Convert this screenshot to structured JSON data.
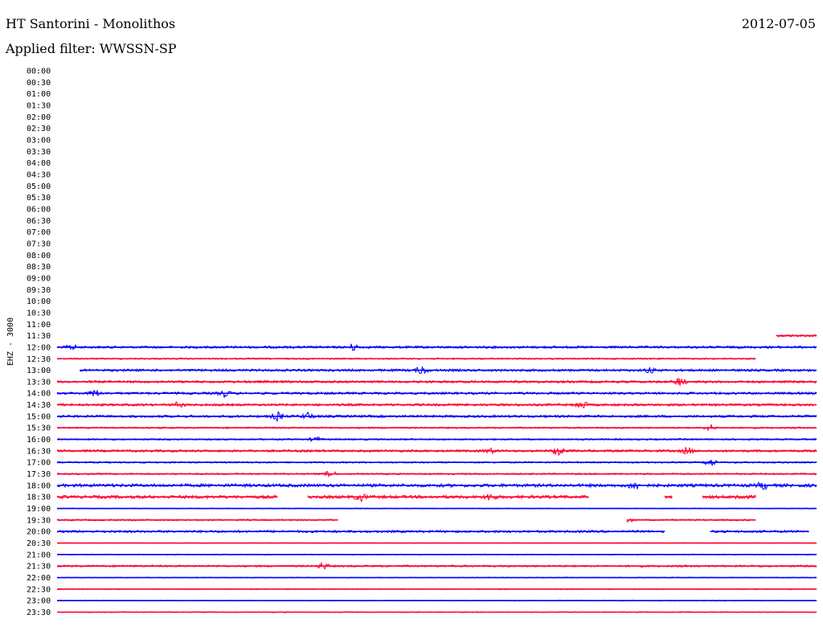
{
  "header": {
    "title": "HT Santorini - Monolithos",
    "date": "2012-07-05",
    "filter": "Applied filter: WWSSN-SP"
  },
  "chart_data": {
    "type": "line",
    "title": "HT Santorini - Monolithos",
    "subtitle": "Applied filter: WWSSN-SP",
    "ylabel": "EHZ - 3000",
    "tick_labels": [
      "00:00",
      "00:30",
      "01:00",
      "01:30",
      "02:00",
      "02:30",
      "03:00",
      "03:30",
      "04:00",
      "04:30",
      "05:00",
      "05:30",
      "06:00",
      "06:30",
      "07:00",
      "07:30",
      "08:00",
      "08:30",
      "09:00",
      "09:30",
      "10:00",
      "10:30",
      "11:00",
      "11:30",
      "12:00",
      "12:30",
      "13:00",
      "13:30",
      "14:00",
      "14:30",
      "15:00",
      "15:30",
      "16:00",
      "16:30",
      "17:00",
      "17:30",
      "18:00",
      "18:30",
      "19:00",
      "19:30",
      "20:00",
      "20:30",
      "21:00",
      "21:30",
      "22:00",
      "22:30",
      "23:00",
      "23:30"
    ],
    "trace_colors": [
      "#0000ff",
      "#ff0033"
    ],
    "rows": [
      {
        "label": "11:30",
        "color": "#ff0033",
        "segments": [
          [
            0.947,
            1.0
          ]
        ],
        "events": [],
        "amp": 1.5
      },
      {
        "label": "12:00",
        "color": "#0000ff",
        "segments": [
          [
            0.0,
            1.0
          ]
        ],
        "events": [
          [
            0.02,
            3
          ],
          [
            0.39,
            4
          ]
        ],
        "amp": 1.5
      },
      {
        "label": "12:30",
        "color": "#ff0033",
        "segments": [
          [
            0.0,
            0.92
          ]
        ],
        "events": [],
        "amp": 1.0
      },
      {
        "label": "13:00",
        "color": "#0000ff",
        "segments": [
          [
            0.03,
            1.0
          ]
        ],
        "events": [
          [
            0.48,
            5
          ],
          [
            0.78,
            3
          ]
        ],
        "amp": 1.5
      },
      {
        "label": "13:30",
        "color": "#ff0033",
        "segments": [
          [
            0.0,
            1.0
          ]
        ],
        "events": [
          [
            0.82,
            5
          ]
        ],
        "amp": 1.5
      },
      {
        "label": "14:00",
        "color": "#0000ff",
        "segments": [
          [
            0.0,
            1.0
          ]
        ],
        "events": [
          [
            0.05,
            4
          ],
          [
            0.22,
            4
          ]
        ],
        "amp": 1.5
      },
      {
        "label": "14:30",
        "color": "#ff0033",
        "segments": [
          [
            0.0,
            1.0
          ]
        ],
        "events": [
          [
            0.16,
            3
          ],
          [
            0.69,
            5
          ]
        ],
        "amp": 1.5
      },
      {
        "label": "15:00",
        "color": "#0000ff",
        "segments": [
          [
            0.0,
            1.0
          ]
        ],
        "events": [
          [
            0.29,
            5
          ],
          [
            0.33,
            4
          ]
        ],
        "amp": 1.5
      },
      {
        "label": "15:30",
        "color": "#ff0033",
        "segments": [
          [
            0.0,
            1.0
          ]
        ],
        "events": [
          [
            0.86,
            4
          ]
        ],
        "amp": 1.0
      },
      {
        "label": "16:00",
        "color": "#0000ff",
        "segments": [
          [
            0.0,
            1.0
          ]
        ],
        "events": [
          [
            0.34,
            3
          ]
        ],
        "amp": 1.0
      },
      {
        "label": "16:30",
        "color": "#ff0033",
        "segments": [
          [
            0.0,
            1.0
          ]
        ],
        "events": [
          [
            0.57,
            3
          ],
          [
            0.66,
            6
          ],
          [
            0.83,
            4
          ]
        ],
        "amp": 1.5
      },
      {
        "label": "17:00",
        "color": "#0000ff",
        "segments": [
          [
            0.0,
            1.0
          ]
        ],
        "events": [
          [
            0.86,
            5
          ]
        ],
        "amp": 1.0
      },
      {
        "label": "17:30",
        "color": "#ff0033",
        "segments": [
          [
            0.0,
            1.0
          ]
        ],
        "events": [
          [
            0.36,
            4
          ]
        ],
        "amp": 1.0
      },
      {
        "label": "18:00",
        "color": "#0000ff",
        "segments": [
          [
            0.0,
            1.0
          ]
        ],
        "events": [
          [
            0.76,
            5
          ],
          [
            0.93,
            4
          ]
        ],
        "amp": 2.0
      },
      {
        "label": "18:30",
        "color": "#ff0033",
        "segments": [
          [
            0.0,
            0.29
          ],
          [
            0.33,
            0.7
          ],
          [
            0.8,
            0.81
          ],
          [
            0.85,
            0.92
          ]
        ],
        "events": [
          [
            0.4,
            4
          ],
          [
            0.57,
            4
          ],
          [
            0.9,
            3
          ]
        ],
        "amp": 2.0
      },
      {
        "label": "19:00",
        "color": "#0000ff",
        "segments": [
          [
            0.0,
            1.0
          ]
        ],
        "events": [],
        "amp": 0.5
      },
      {
        "label": "19:30",
        "color": "#ff0033",
        "segments": [
          [
            0.0,
            0.37
          ],
          [
            0.75,
            0.92
          ]
        ],
        "events": [
          [
            0.75,
            3
          ]
        ],
        "amp": 1.0
      },
      {
        "label": "20:00",
        "color": "#0000ff",
        "segments": [
          [
            0.0,
            0.8
          ],
          [
            0.86,
            0.99
          ]
        ],
        "events": [],
        "amp": 1.5
      },
      {
        "label": "20:30",
        "color": "#ff0033",
        "segments": [
          [
            0.0,
            1.0
          ]
        ],
        "events": [],
        "amp": 0.5
      },
      {
        "label": "21:00",
        "color": "#0000ff",
        "segments": [
          [
            0.0,
            1.0
          ]
        ],
        "events": [],
        "amp": 0.6
      },
      {
        "label": "21:30",
        "color": "#ff0033",
        "segments": [
          [
            0.0,
            1.0
          ]
        ],
        "events": [
          [
            0.35,
            4
          ]
        ],
        "amp": 1.2
      },
      {
        "label": "22:00",
        "color": "#0000ff",
        "segments": [
          [
            0.0,
            1.0
          ]
        ],
        "events": [],
        "amp": 0.5
      },
      {
        "label": "22:30",
        "color": "#ff0033",
        "segments": [
          [
            0.0,
            1.0
          ]
        ],
        "events": [],
        "amp": 0.6
      },
      {
        "label": "23:00",
        "color": "#0000ff",
        "segments": [
          [
            0.0,
            1.0
          ]
        ],
        "events": [],
        "amp": 0.6
      },
      {
        "label": "23:30",
        "color": "#ff0033",
        "segments": [
          [
            0.0,
            1.0
          ]
        ],
        "events": [],
        "amp": 0.6
      }
    ]
  }
}
